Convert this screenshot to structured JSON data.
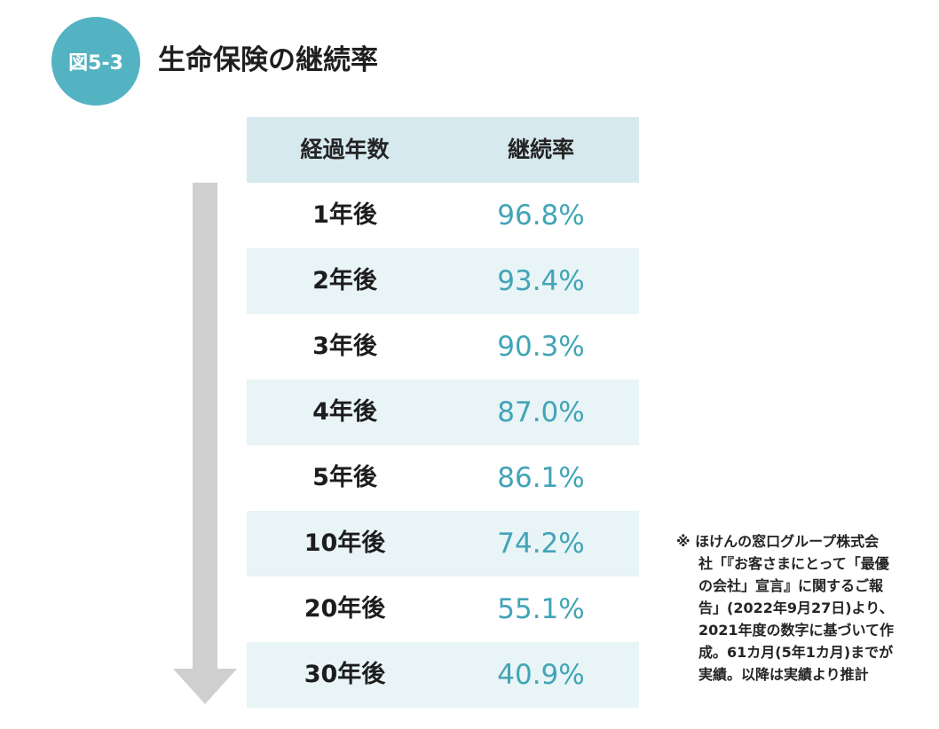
{
  "colors": {
    "badge": "#54b3c3",
    "header_bg": "#d6e9ee",
    "row_alt": "#e8f4f6",
    "rate_text": "#42a4b7",
    "arrow": "#cfcfcf"
  },
  "figure": {
    "badge": "図5-3",
    "title": "生命保険の継続率"
  },
  "table": {
    "headers": [
      "経過年数",
      "継続率"
    ],
    "rows": [
      {
        "period": "1年後",
        "rate": "96.8%"
      },
      {
        "period": "2年後",
        "rate": "93.4%"
      },
      {
        "period": "3年後",
        "rate": "90.3%"
      },
      {
        "period": "4年後",
        "rate": "87.0%"
      },
      {
        "period": "5年後",
        "rate": "86.1%"
      },
      {
        "period": "10年後",
        "rate": "74.2%"
      },
      {
        "period": "20年後",
        "rate": "55.1%"
      },
      {
        "period": "30年後",
        "rate": "40.9%"
      }
    ]
  },
  "note": {
    "lines": [
      "※ ほけんの窓口グループ株式会",
      "社「『お客さまにとって「最優",
      "の会社」宣言』に関するご報",
      "告」(2022年9月27日)より、",
      "2021年度の数字に基づいて作",
      "成。61カ月(5年1カ月)までが",
      "実績。以降は実績より推計"
    ]
  },
  "arrow": {
    "icon": "down-arrow-icon"
  }
}
